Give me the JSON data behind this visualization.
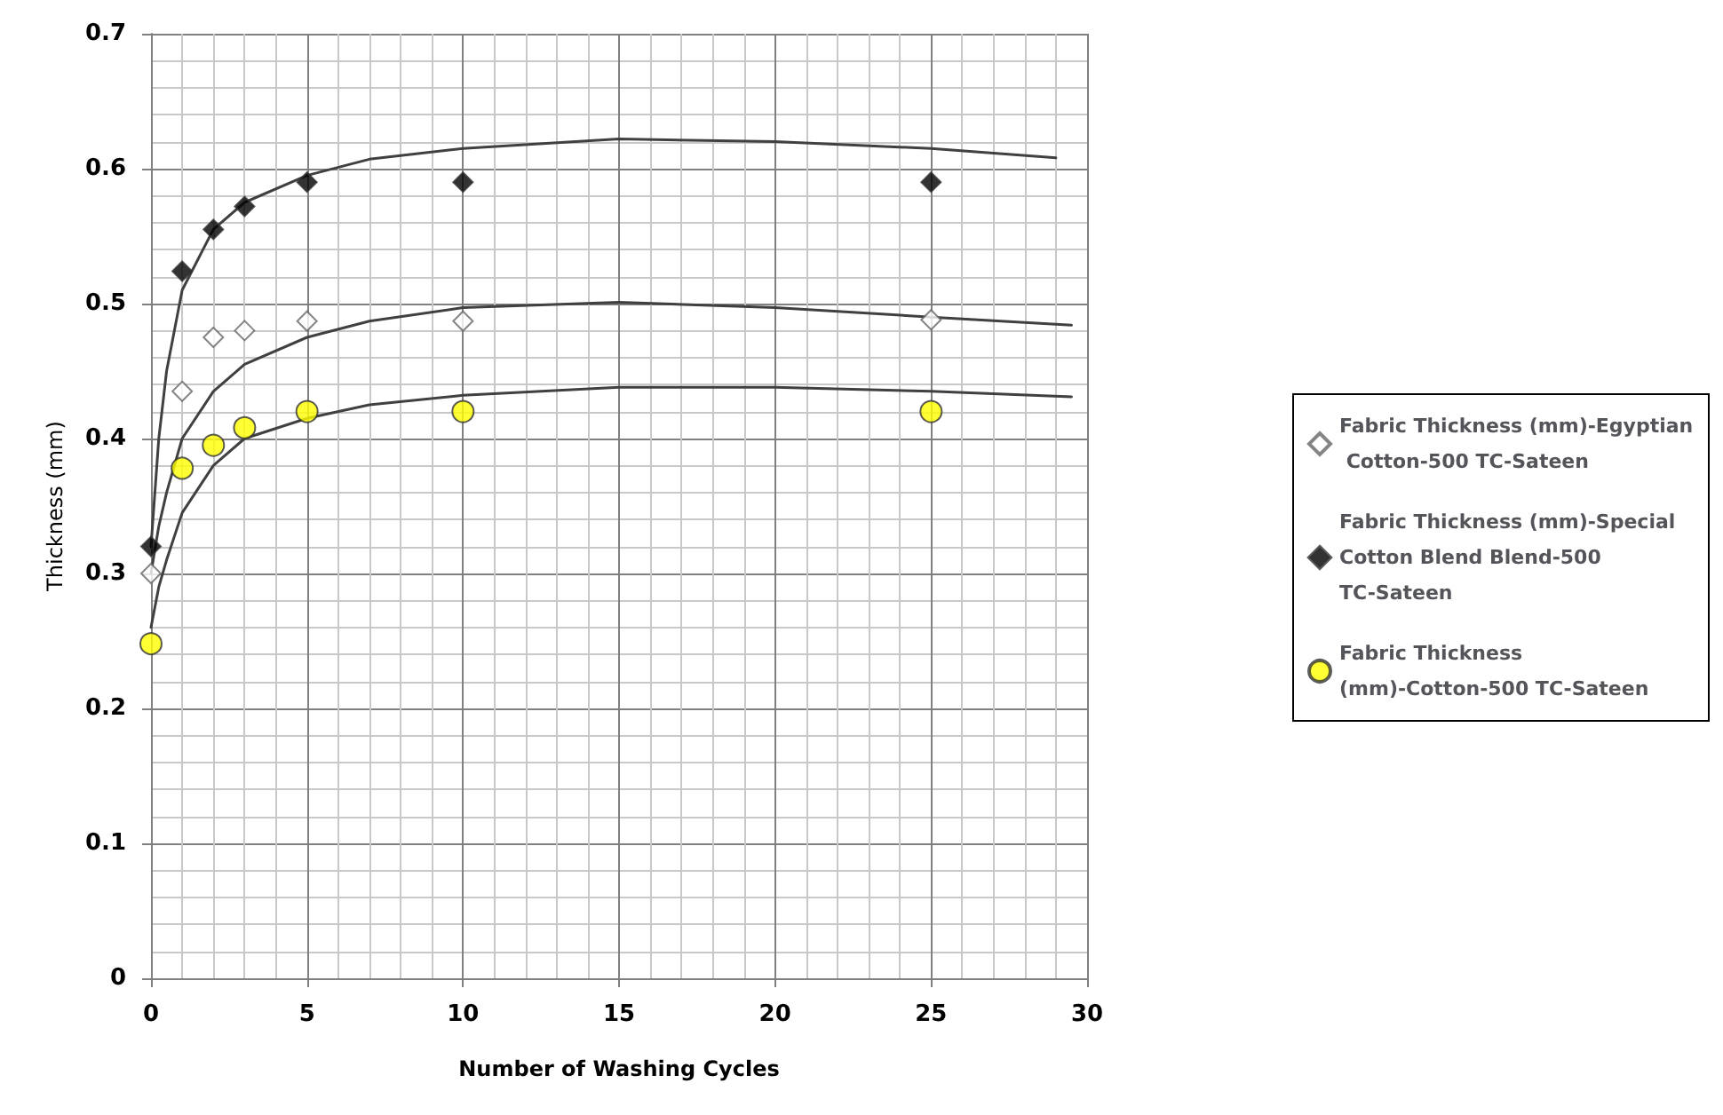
{
  "chart_data": {
    "type": "scatter",
    "xlabel": "Number of Washing Cycles",
    "ylabel": "Thickness (mm)",
    "xlim": [
      0,
      30
    ],
    "xticks": [
      0,
      5,
      10,
      15,
      20,
      25,
      30
    ],
    "ylim": [
      0,
      0.7
    ],
    "yticks": [
      0,
      0.1,
      0.2,
      0.3,
      0.4,
      0.5,
      0.6,
      0.7
    ],
    "grid": true,
    "legend": "right",
    "series": [
      {
        "name": "Fabric Thickness (mm)-Egyptian Cotton-500 TC-Sateen",
        "color": "#ffffff",
        "marker": "diamond",
        "x": [
          0,
          1,
          2,
          3,
          5,
          10,
          25
        ],
        "values": [
          0.3,
          0.435,
          0.475,
          0.48,
          0.487,
          0.487,
          0.488
        ]
      },
      {
        "name": "Fabric Thickness (mm)-Special Cotton Blend Blend-500 TC-Sateen",
        "color": "#000000",
        "marker": "diamond",
        "x": [
          0,
          1,
          2,
          3,
          5,
          10,
          25
        ],
        "values": [
          0.32,
          0.524,
          0.555,
          0.572,
          0.59,
          0.59,
          0.59
        ]
      },
      {
        "name": "Fabric Thickness (mm)-Cotton-500 TC-Sateen",
        "color": "#ffff00",
        "marker": "circle",
        "x": [
          0,
          1,
          2,
          3,
          5,
          10,
          25
        ],
        "values": [
          0.248,
          0.378,
          0.395,
          0.408,
          0.42,
          0.42,
          0.42
        ]
      },
      {
        "type": "line",
        "color": "#404040",
        "marker": "none",
        "line_style": "solid",
        "x": [
          0,
          0.25,
          0.5,
          1,
          2,
          3,
          5,
          7,
          10,
          15,
          20,
          25,
          29
        ],
        "values": [
          0.32,
          0.4,
          0.45,
          0.51,
          0.555,
          0.575,
          0.595,
          0.607,
          0.615,
          0.622,
          0.62,
          0.615,
          0.608
        ]
      },
      {
        "type": "line",
        "color": "#404040",
        "marker": "none",
        "line_style": "solid",
        "x": [
          0,
          0.25,
          0.5,
          1,
          2,
          3,
          5,
          7,
          10,
          15,
          20,
          25,
          29.5
        ],
        "values": [
          0.3,
          0.335,
          0.36,
          0.4,
          0.435,
          0.455,
          0.475,
          0.487,
          0.497,
          0.501,
          0.497,
          0.49,
          0.484
        ]
      },
      {
        "type": "line",
        "color": "#404040",
        "marker": "none",
        "line_style": "solid",
        "x": [
          0,
          0.25,
          0.5,
          1,
          2,
          3,
          5,
          7,
          10,
          15,
          20,
          25,
          29.5
        ],
        "values": [
          0.26,
          0.29,
          0.31,
          0.345,
          0.38,
          0.4,
          0.415,
          0.425,
          0.432,
          0.438,
          0.438,
          0.435,
          0.431
        ]
      }
    ]
  }
}
